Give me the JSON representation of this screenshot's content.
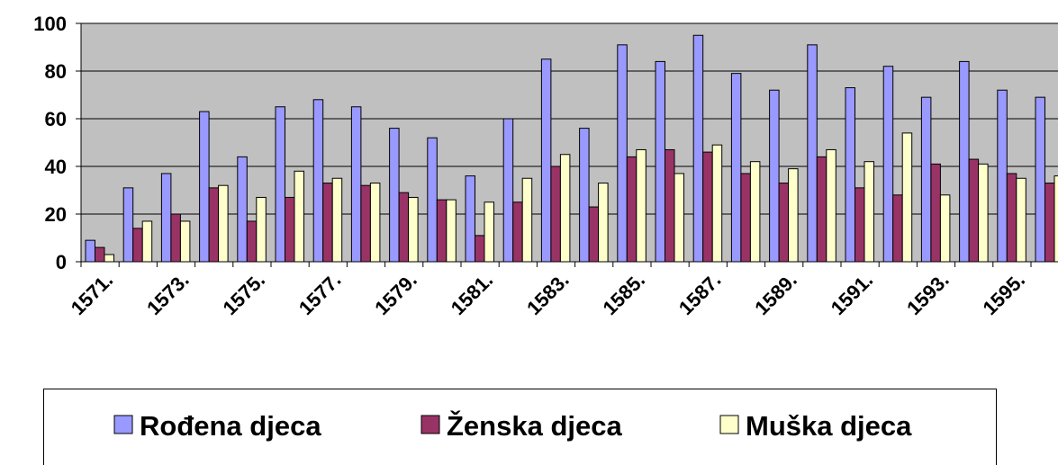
{
  "chart_data": {
    "type": "bar",
    "categories": [
      "1571.",
      null,
      "1573.",
      null,
      "1575.",
      null,
      "1577.",
      null,
      "1579.",
      null,
      "1581.",
      null,
      "1583.",
      null,
      "1585.",
      null,
      "1587.",
      null,
      "1589.",
      null,
      "1591.",
      null,
      "1593.",
      null,
      "1595.",
      null
    ],
    "series": [
      {
        "name": "Rođena djeca",
        "color": "#9999ff",
        "values": [
          9,
          31,
          37,
          63,
          44,
          65,
          68,
          65,
          56,
          52,
          36,
          60,
          85,
          56,
          91,
          84,
          95,
          79,
          72,
          91,
          73,
          82,
          69,
          84,
          72,
          69
        ]
      },
      {
        "name": "Ženska djeca",
        "color": "#993366",
        "values": [
          6,
          14,
          20,
          31,
          17,
          27,
          33,
          32,
          29,
          26,
          11,
          25,
          40,
          23,
          44,
          47,
          46,
          37,
          33,
          44,
          31,
          28,
          41,
          43,
          37,
          33
        ]
      },
      {
        "name": "Muška djeca",
        "color": "#ffffcc",
        "values": [
          3,
          17,
          17,
          32,
          27,
          38,
          35,
          33,
          27,
          26,
          25,
          35,
          45,
          33,
          47,
          37,
          49,
          42,
          39,
          47,
          42,
          54,
          28,
          41,
          35,
          36
        ]
      }
    ],
    "ylim": [
      0,
      100
    ],
    "yticks": [
      0,
      20,
      40,
      60,
      80,
      100
    ],
    "grid": true,
    "legend": "bottom"
  }
}
